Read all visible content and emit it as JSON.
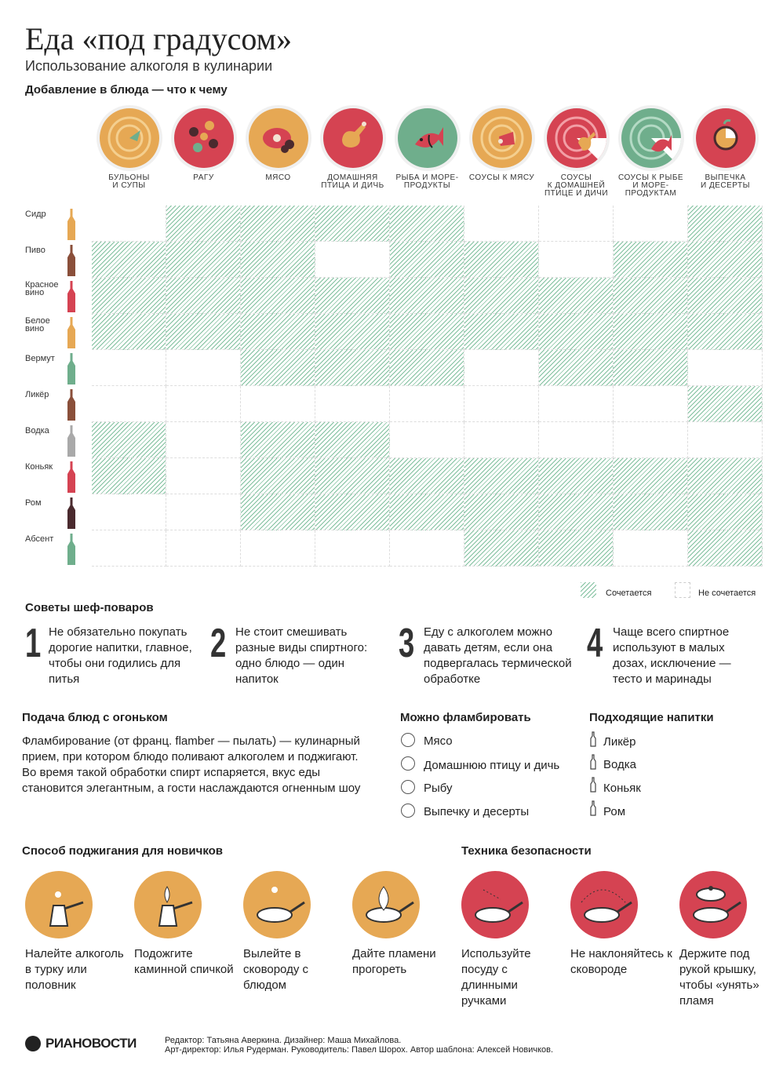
{
  "title": "Еда «под градусом»",
  "subtitle": "Использование алкоголя в кулинарии",
  "table_title": "Добавление в блюда — что к чему",
  "colors": {
    "orange": "#e6a854",
    "red": "#d54352",
    "green": "#6fae8c",
    "brown": "#8a4f3a",
    "dark": "#4a2a2e",
    "grey": "#a9a9a9"
  },
  "columns": [
    {
      "label": "БУЛЬОНЫ\nИ СУПЫ",
      "bg": "#e6a854",
      "icon": "soup-icon"
    },
    {
      "label": "РАГУ",
      "bg": "#d54352",
      "icon": "stew-icon"
    },
    {
      "label": "МЯСО",
      "bg": "#e6a854",
      "icon": "meat-icon"
    },
    {
      "label": "ДОМАШНЯЯ\nПТИЦА И ДИЧЬ",
      "bg": "#d54352",
      "icon": "poultry-icon"
    },
    {
      "label": "РЫБА И МОРЕ-\nПРОДУКТЫ",
      "bg": "#6fae8c",
      "icon": "fish-icon"
    },
    {
      "label": "СОУСЫ К МЯСУ",
      "bg": "#e6a854",
      "icon": "meat-sauce-icon"
    },
    {
      "label": "СОУСЫ\nК ДОМАШНЕЙ\nПТИЦЕ И ДИЧИ",
      "bg": "#d54352",
      "icon": "poultry-sauce-icon"
    },
    {
      "label": "СОУСЫ К РЫБЕ\nИ МОРЕ-\nПРОДУКТАМ",
      "bg": "#6fae8c",
      "icon": "fish-sauce-icon"
    },
    {
      "label": "ВЫПЕЧКА\nИ ДЕСЕРТЫ",
      "bg": "#d54352",
      "icon": "dessert-icon"
    }
  ],
  "rows": [
    {
      "label": "Сидр",
      "bottle": "#e6a854",
      "cells": [
        0,
        1,
        1,
        1,
        1,
        0,
        0,
        0,
        1
      ]
    },
    {
      "label": "Пиво",
      "bottle": "#8a4f3a",
      "cells": [
        1,
        1,
        1,
        0,
        1,
        1,
        0,
        1,
        1
      ]
    },
    {
      "label": "Красное\nвино",
      "bottle": "#d54352",
      "cells": [
        1,
        1,
        1,
        1,
        1,
        1,
        1,
        1,
        1
      ]
    },
    {
      "label": "Белое\nвино",
      "bottle": "#e6a854",
      "cells": [
        1,
        1,
        1,
        1,
        1,
        1,
        1,
        1,
        1
      ]
    },
    {
      "label": "Вермут",
      "bottle": "#6fae8c",
      "cells": [
        0,
        0,
        1,
        1,
        1,
        0,
        1,
        1,
        0
      ]
    },
    {
      "label": "Ликёр",
      "bottle": "#8a4f3a",
      "cells": [
        0,
        0,
        0,
        0,
        0,
        0,
        0,
        0,
        1
      ]
    },
    {
      "label": "Водка",
      "bottle": "#a9a9a9",
      "cells": [
        1,
        0,
        1,
        1,
        0,
        0,
        0,
        0,
        0
      ]
    },
    {
      "label": "Коньяк",
      "bottle": "#d54352",
      "cells": [
        1,
        0,
        1,
        1,
        1,
        1,
        1,
        1,
        1
      ]
    },
    {
      "label": "Ром",
      "bottle": "#4a2a2e",
      "cells": [
        0,
        0,
        1,
        1,
        1,
        1,
        1,
        1,
        1
      ]
    },
    {
      "label": "Абсент",
      "bottle": "#6fae8c",
      "cells": [
        0,
        0,
        0,
        0,
        0,
        1,
        1,
        0,
        1
      ]
    }
  ],
  "legend": {
    "yes": "Сочетается",
    "no": "Не сочетается"
  },
  "tips_title": "Советы шеф-поваров",
  "tips": [
    {
      "num": "1",
      "text": "Не обязательно покупать дорогие напитки, главное, чтобы они годились для питья"
    },
    {
      "num": "2",
      "text": "Не стоит смешивать разные виды спиртного: одно блюдо — один напиток"
    },
    {
      "num": "3",
      "text": "Еду с алкоголем можно давать детям, если она подвергалась термической обработке"
    },
    {
      "num": "4",
      "text": "Чаще всего спиртное используют в малых дозах, исключение — тесто и маринады"
    }
  ],
  "flambe": {
    "title": "Подача блюд с огоньком",
    "text": "Фламбирование (от франц. flamber — пылать) — кулинарный прием, при котором блюдо поливают алкоголем и поджигают. Во время такой обработки спирт испаряется, вкус еды становится элегантным, а гости наслаждаются огненным шоу"
  },
  "can_flambe": {
    "title": "Можно фламбировать",
    "items": [
      "Мясо",
      "Домашнюю птицу и дичь",
      "Рыбу",
      "Выпечку и десерты"
    ]
  },
  "drinks": {
    "title": "Подходящие напитки",
    "items": [
      "Ликёр",
      "Водка",
      "Коньяк",
      "Ром"
    ]
  },
  "beginner": {
    "title": "Способ поджигания для новичков",
    "steps": [
      {
        "text": "Налейте алкоголь в турку или половник",
        "icon": "turk-icon"
      },
      {
        "text": "Подожгите каминной спичкой",
        "icon": "turk-fire-icon"
      },
      {
        "text": "Вылейте в сковороду с блюдом",
        "icon": "pan-drop-icon"
      },
      {
        "text": "Дайте пламени прогореть",
        "icon": "pan-fire-icon"
      }
    ]
  },
  "safety": {
    "title": "Техника безопасности",
    "steps": [
      {
        "text": "Используйте посуду с длинными ручками",
        "icon": "long-handle-pan-icon"
      },
      {
        "text": "Не наклоняйтесь к сковороде",
        "icon": "pan-arc-icon"
      },
      {
        "text": "Держите под рукой крышку, чтобы «унять» пламя",
        "icon": "pan-lid-icon"
      }
    ]
  },
  "footer": {
    "logo": "РИАНОВОСТИ",
    "line1": "Редактор: Татьяна Аверкина. Дизайнер: Маша Михайлова.",
    "line2": "Арт-директор: Илья Рудерман. Руководитель: Павел Шорох. Автор шаблона: Алексей Новичков."
  }
}
